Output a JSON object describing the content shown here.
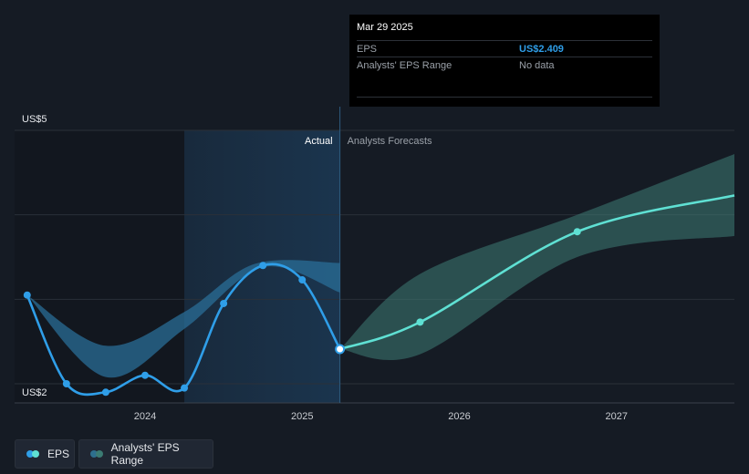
{
  "chart_data": {
    "type": "line",
    "y_axis": {
      "top_label": "US$5",
      "bottom_label": "US$2",
      "ylim": [
        2,
        5
      ]
    },
    "x_ticks": [
      {
        "label": "2024",
        "x": 2024.0
      },
      {
        "label": "2025",
        "x": 2025.0
      },
      {
        "label": "2026",
        "x": 2026.0
      },
      {
        "label": "2027",
        "x": 2027.0
      }
    ],
    "xlim": [
      2023.17,
      2027.75
    ],
    "highlight_start": 2024.25,
    "divider": 2025.24,
    "section_labels": {
      "actual": "Actual",
      "forecast": "Analysts Forecasts"
    },
    "eps_actual": [
      {
        "x": 2023.25,
        "y": 3.05
      },
      {
        "x": 2023.5,
        "y": 2.0
      },
      {
        "x": 2023.75,
        "y": 1.9
      },
      {
        "x": 2024.0,
        "y": 2.1
      },
      {
        "x": 2024.25,
        "y": 1.95
      },
      {
        "x": 2024.5,
        "y": 2.95
      },
      {
        "x": 2024.75,
        "y": 3.4
      },
      {
        "x": 2025.0,
        "y": 3.23
      },
      {
        "x": 2025.24,
        "y": 2.41
      }
    ],
    "eps_forecast": [
      {
        "x": 2025.24,
        "y": 2.41
      },
      {
        "x": 2025.75,
        "y": 2.73
      },
      {
        "x": 2026.75,
        "y": 3.8
      },
      {
        "x": 2027.75,
        "y": 4.23
      }
    ],
    "actual_range": {
      "upper": [
        {
          "x": 2023.25,
          "y": 3.05
        },
        {
          "x": 2023.75,
          "y": 2.45
        },
        {
          "x": 2024.25,
          "y": 2.85
        },
        {
          "x": 2024.7,
          "y": 3.42
        },
        {
          "x": 2025.24,
          "y": 3.43
        }
      ],
      "lower": [
        {
          "x": 2025.24,
          "y": 3.08
        },
        {
          "x": 2024.75,
          "y": 3.38
        },
        {
          "x": 2024.25,
          "y": 2.65
        },
        {
          "x": 2023.75,
          "y": 2.08
        },
        {
          "x": 2023.25,
          "y": 3.05
        }
      ]
    },
    "forecast_range": {
      "upper": [
        {
          "x": 2025.24,
          "y": 2.41
        },
        {
          "x": 2025.75,
          "y": 3.3
        },
        {
          "x": 2026.75,
          "y": 4.0
        },
        {
          "x": 2027.75,
          "y": 4.72
        }
      ],
      "lower": [
        {
          "x": 2027.75,
          "y": 3.75
        },
        {
          "x": 2026.75,
          "y": 3.5
        },
        {
          "x": 2025.75,
          "y": 2.35
        },
        {
          "x": 2025.24,
          "y": 2.41
        }
      ]
    },
    "tooltip": {
      "date": "Mar 29 2025",
      "rows": [
        {
          "label": "EPS",
          "value": "US$2.409"
        },
        {
          "label": "Analysts' EPS Range",
          "value": "No data"
        }
      ]
    },
    "legend": [
      {
        "label": "EPS",
        "colors": [
          "#2f9ee8",
          "#5fe0d3"
        ]
      },
      {
        "label": "Analysts' EPS Range",
        "colors": [
          "#2e6f8e",
          "#3b7b73"
        ]
      }
    ],
    "colors": {
      "eps_actual": "#2f9ee8",
      "eps_forecast": "#5fe0d3",
      "range_actual": "#2a6d97",
      "range_forecast": "#3e7b75",
      "highlight": "#1b3650",
      "grid": "#2a3039"
    }
  }
}
